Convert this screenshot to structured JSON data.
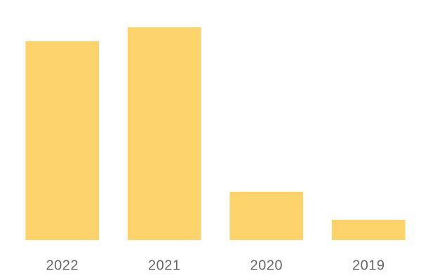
{
  "chart_data": {
    "type": "bar",
    "categories": [
      "2022",
      "2021",
      "2020",
      "2019"
    ],
    "values": [
      284,
      304,
      69,
      29
    ],
    "color": "#fdd46b",
    "ylim": [
      0,
      304
    ]
  }
}
